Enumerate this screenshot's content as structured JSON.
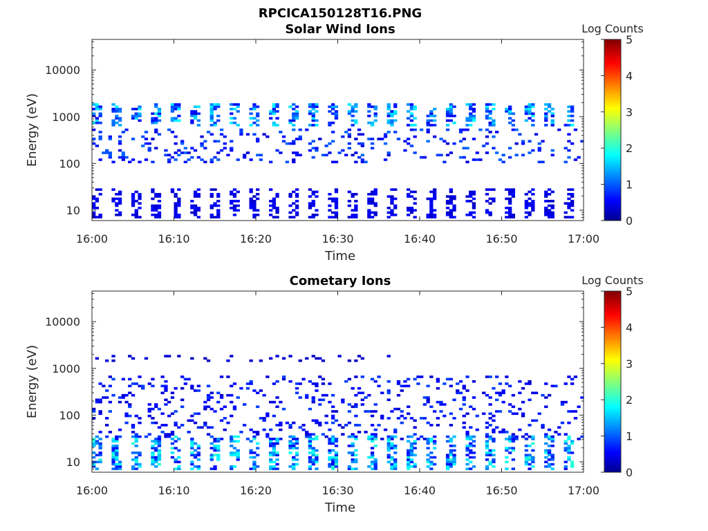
{
  "figure_title": "RPCICA150128T16.PNG",
  "chart_data": [
    {
      "type": "heatmap",
      "title": "Solar Wind Ions",
      "xlabel": "Time",
      "ylabel": "Energy (eV)",
      "x_ticks": [
        "16:00",
        "16:10",
        "16:20",
        "16:30",
        "16:40",
        "16:50",
        "17:00"
      ],
      "y_ticks": [
        "10",
        "100",
        "1000",
        "10000"
      ],
      "y_scale": "log",
      "ylim": [
        6,
        45000
      ],
      "xlim": [
        "16:00",
        "17:00"
      ],
      "colorbar_label": "Log Counts",
      "colorbar_ticks": [
        "0",
        "1",
        "2",
        "3",
        "4",
        "5"
      ],
      "clim": [
        0,
        5
      ],
      "colormap": "jet",
      "bands": [
        {
          "name": "solar-wind-peak",
          "energy_range": [
            650,
            1800
          ],
          "max_log_counts": 1.8,
          "duty": "intermittent"
        },
        {
          "name": "scattered-mid-energy",
          "energy_range": [
            110,
            500
          ],
          "max_log_counts": 1.0,
          "duty": "sparse"
        },
        {
          "name": "low-energy",
          "energy_range": [
            7,
            28
          ],
          "max_log_counts": 0.5,
          "duty": "intermittent"
        }
      ]
    },
    {
      "type": "heatmap",
      "title": "Cometary Ions",
      "xlabel": "Time",
      "ylabel": "Energy (eV)",
      "x_ticks": [
        "16:00",
        "16:10",
        "16:20",
        "16:30",
        "16:40",
        "16:50",
        "17:00"
      ],
      "y_ticks": [
        "10",
        "100",
        "1000",
        "10000"
      ],
      "y_scale": "log",
      "ylim": [
        6,
        45000
      ],
      "xlim": [
        "16:00",
        "17:00"
      ],
      "colorbar_label": "Log Counts",
      "colorbar_ticks": [
        "0",
        "1",
        "2",
        "3",
        "4",
        "5"
      ],
      "clim": [
        0,
        5
      ],
      "colormap": "jet",
      "bands": [
        {
          "name": "high-energy-trace",
          "energy_range": [
            1500,
            1800
          ],
          "max_log_counts": 0.3,
          "duty": "sparse",
          "time_range": [
            "16:00",
            "16:36"
          ]
        },
        {
          "name": "dispersed-rising-features",
          "energy_range": [
            30,
            650
          ],
          "max_log_counts": 0.8,
          "duty": "sparse"
        },
        {
          "name": "low-energy-cometary",
          "energy_range": [
            7,
            35
          ],
          "max_log_counts": 2.1,
          "duty": "intermittent"
        }
      ]
    }
  ]
}
